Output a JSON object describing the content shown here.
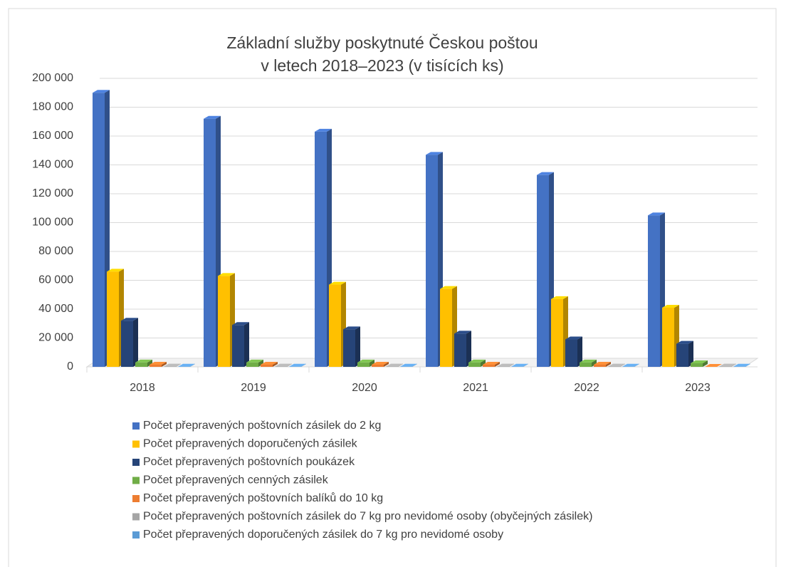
{
  "chart_data": {
    "type": "bar3d",
    "title": [
      "Základní služby poskytnuté Českou poštou",
      "v letech 2018–2023 (v tisících ks)"
    ],
    "categories": [
      "2018",
      "2019",
      "2020",
      "2021",
      "2022",
      "2023"
    ],
    "series": [
      {
        "name": "Počet přepravených poštovních zásilek do 2 kg",
        "color": "#4472c4",
        "values": [
          190000,
          172000,
          163000,
          147000,
          133000,
          105000
        ]
      },
      {
        "name": "Počet přepravených doporučených zásilek",
        "color": "#ffc000",
        "values": [
          66000,
          63000,
          57000,
          54000,
          47000,
          41000
        ]
      },
      {
        "name": "Počet přepravených poštovních poukázek",
        "color": "#264478",
        "values": [
          32000,
          29000,
          26000,
          23000,
          19000,
          16000
        ]
      },
      {
        "name": "Počet přepravených cenných zásilek",
        "color": "#70ad47",
        "values": [
          3000,
          3000,
          3000,
          3000,
          3000,
          2500
        ]
      },
      {
        "name": "Počet přepravených poštovních balíků do 10 kg",
        "color": "#ed7d31",
        "values": [
          1500,
          1500,
          1500,
          1500,
          1500,
          0
        ]
      },
      {
        "name": "Počet přepravených poštovních zásilek do 7 kg pro nevidomé osoby (obyčejných zásilek)",
        "color": "#a5a5a5",
        "values": [
          200,
          200,
          200,
          200,
          200,
          200
        ]
      },
      {
        "name": "Počet přepravených doporučených zásilek do 7 kg pro nevidomé osoby",
        "color": "#5b9bd5",
        "values": [
          100,
          100,
          100,
          100,
          100,
          100
        ]
      }
    ],
    "ylim": [
      0,
      200000
    ],
    "yticks": [
      0,
      {
        "value": 20000,
        "label": "20 000"
      },
      {
        "value": 40000,
        "label": "40 000"
      },
      {
        "value": 60000,
        "label": "60 000"
      },
      {
        "value": 80000,
        "label": "80 000"
      },
      {
        "value": 100000,
        "label": "100 000"
      },
      {
        "value": 120000,
        "label": "120 000"
      },
      {
        "value": 140000,
        "label": "140 000"
      },
      {
        "value": 160000,
        "label": "160 000"
      },
      {
        "value": 180000,
        "label": "180 000"
      },
      {
        "value": 200000,
        "label": "200 000"
      }
    ],
    "grid": true,
    "legend": "bottom"
  }
}
